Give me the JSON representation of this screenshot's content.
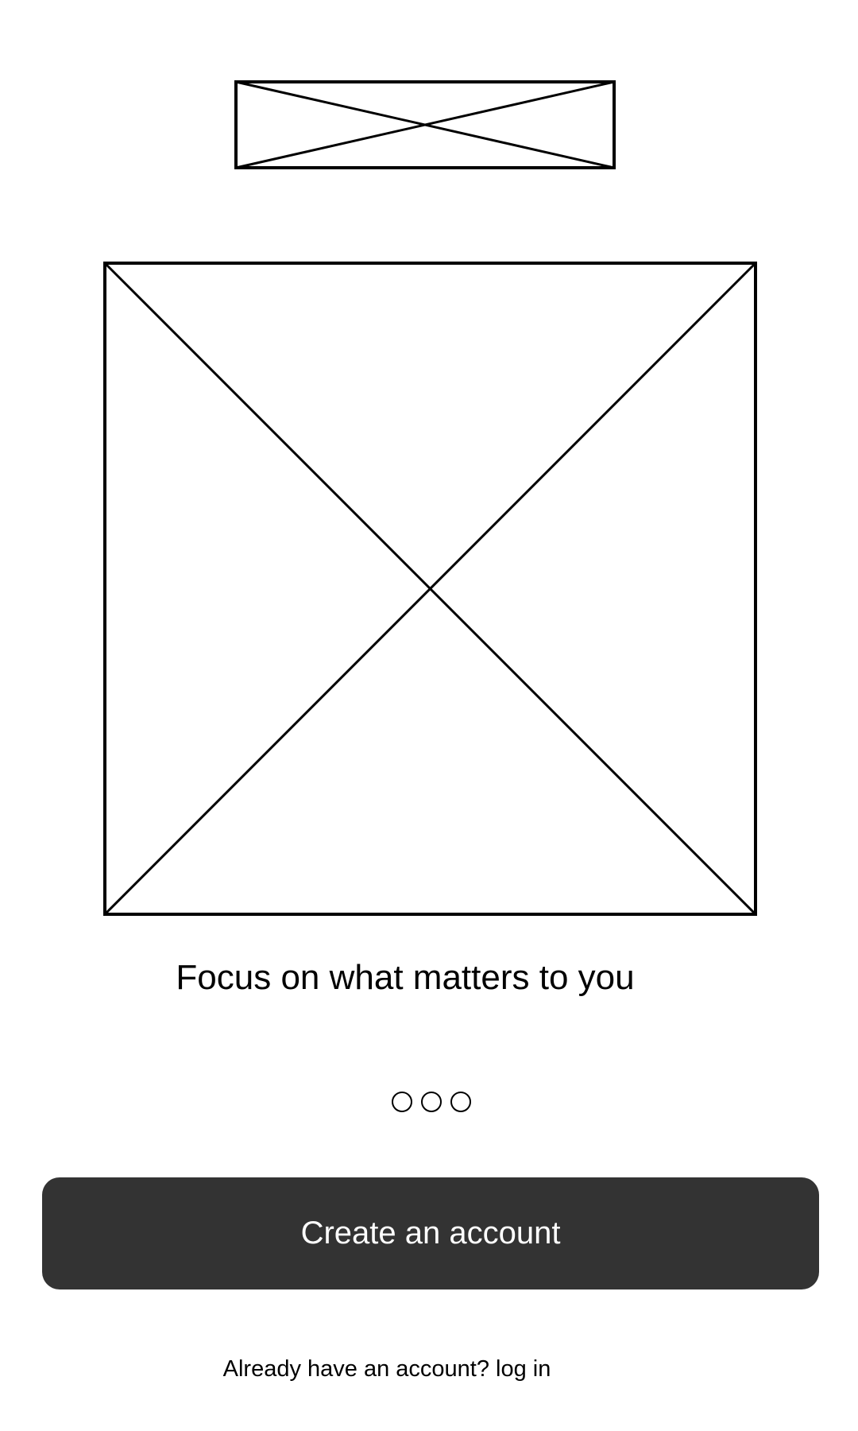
{
  "onboarding": {
    "tagline": "Focus on what matters to you",
    "pager": {
      "total_pages": 3
    },
    "create_account_label": "Create an account",
    "login_prompt": "Already have an account?",
    "login_link_label": "log in"
  },
  "colors": {
    "button_background": "#333333",
    "button_text": "#ffffff",
    "wireframe_stroke": "#000000"
  }
}
